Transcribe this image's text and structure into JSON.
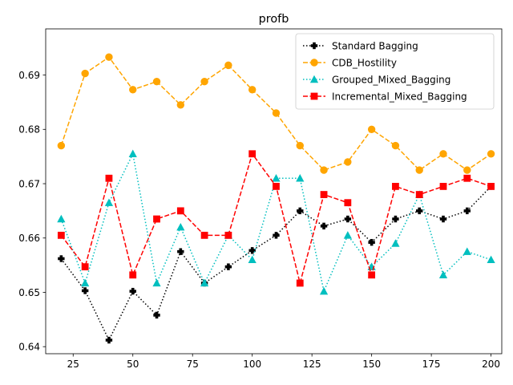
{
  "chart_data": {
    "type": "line",
    "title": "profb",
    "xlabel": "",
    "ylabel": "",
    "xlim": [
      13.5,
      204.5
    ],
    "ylim": [
      0.6387,
      0.6985
    ],
    "xticks": [
      25,
      50,
      75,
      100,
      125,
      150,
      175,
      200
    ],
    "yticks": [
      0.64,
      0.65,
      0.66,
      0.67,
      0.68,
      0.69
    ],
    "grid": false,
    "legend_position": "top-right",
    "x": [
      20,
      30,
      40,
      50,
      60,
      70,
      80,
      90,
      100,
      110,
      120,
      130,
      140,
      150,
      160,
      170,
      180,
      190,
      200
    ],
    "series": [
      {
        "name": "Standard Bagging",
        "color": "#000000",
        "line_style": "dotted",
        "marker": "plus",
        "values": [
          0.6562,
          0.6503,
          0.6412,
          0.6502,
          0.6458,
          0.6575,
          0.6517,
          0.6547,
          0.6577,
          0.6605,
          0.665,
          0.6622,
          0.6635,
          0.6592,
          0.6635,
          0.665,
          0.6635,
          0.665,
          0.6695
        ]
      },
      {
        "name": "CDB_Hostility",
        "color": "#ffa500",
        "line_style": "dashed",
        "marker": "circle",
        "values": [
          0.677,
          0.6903,
          0.6933,
          0.6873,
          0.6888,
          0.6845,
          0.6888,
          0.6918,
          0.6873,
          0.683,
          0.677,
          0.6725,
          0.674,
          0.68,
          0.677,
          0.6725,
          0.6755,
          0.6725,
          0.6755
        ]
      },
      {
        "name": "Grouped_Mixed_Bagging",
        "color": "#00bfbf",
        "line_style": "dotted",
        "marker": "triangle",
        "values": [
          0.6635,
          0.6517,
          0.6665,
          0.6755,
          0.6517,
          0.662,
          0.6517,
          0.6605,
          0.656,
          0.671,
          0.671,
          0.6502,
          0.6605,
          0.6547,
          0.659,
          0.668,
          0.6532,
          0.6575,
          0.656
        ]
      },
      {
        "name": "Incremental_Mixed_Bagging",
        "color": "#ff0000",
        "line_style": "dashed",
        "marker": "square",
        "values": [
          0.6605,
          0.6547,
          0.671,
          0.6532,
          0.6635,
          0.665,
          0.6605,
          0.6605,
          0.6755,
          0.6695,
          0.6517,
          0.668,
          0.6665,
          0.6532,
          0.6695,
          0.668,
          0.6695,
          0.671,
          0.6695
        ]
      }
    ]
  }
}
